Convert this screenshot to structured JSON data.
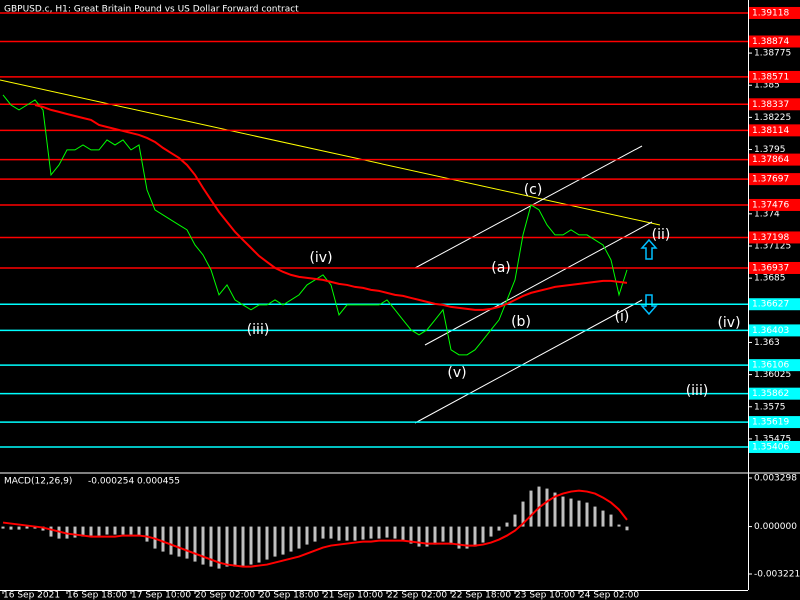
{
  "chart_data": [
    {
      "type": "line",
      "title": "GBPUSD.c, H1: Great Britain Pound vs US Dollar Forward contract",
      "categories": [
        "16 Sep 2021",
        null,
        null,
        null,
        null,
        null,
        null,
        null,
        "16 Sep 18:00",
        null,
        null,
        null,
        null,
        null,
        null,
        null,
        "17 Sep 10:00",
        null,
        null,
        null,
        null,
        null,
        null,
        null,
        "20 Sep 02:00",
        null,
        null,
        null,
        null,
        null,
        null,
        null,
        "20 Sep 18:00",
        null,
        null,
        null,
        null,
        null,
        null,
        null,
        "21 Sep 10:00",
        null,
        null,
        null,
        null,
        null,
        null,
        null,
        "22 Sep 02:00",
        null,
        null,
        null,
        null,
        null,
        null,
        null,
        "22 Sep 18:00",
        null,
        null,
        null,
        null,
        null,
        null,
        null,
        "23 Sep 10:00",
        null,
        null,
        null,
        null,
        null,
        null,
        null,
        "24 Sep 02:00",
        null,
        null,
        null,
        null,
        null,
        null
      ],
      "series": [
        {
          "color": "#00ff00",
          "values": [
            1.38417,
            1.38331,
            1.38289,
            1.38331,
            1.38374,
            1.38289,
            1.37733,
            1.37818,
            1.37947,
            1.37947,
            1.37989,
            1.37947,
            1.37947,
            1.38032,
            1.37989,
            1.38032,
            1.37947,
            1.37989,
            1.37605,
            1.37434,
            1.37391,
            1.37348,
            1.37305,
            1.37263,
            1.37134,
            1.37049,
            1.36921,
            1.36707,
            1.36792,
            1.36664,
            1.36621,
            1.36579,
            1.36621,
            1.36621,
            1.36664,
            1.36621,
            1.36664,
            1.36707,
            1.36792,
            1.36835,
            1.36878,
            1.36792,
            1.36536,
            1.36621,
            1.36621,
            1.36621,
            1.36621,
            1.36621,
            1.36664,
            1.36579,
            1.36493,
            1.36408,
            1.36365,
            1.36408,
            1.36493,
            1.36579,
            1.36237,
            1.36194,
            1.36194,
            1.36237,
            1.36322,
            1.36408,
            1.36493,
            1.36664,
            1.36835,
            1.3722,
            1.37476,
            1.37434,
            1.37305,
            1.3722,
            1.3722,
            1.37263,
            1.3722,
            1.3722,
            1.37177,
            1.37134,
            1.37006,
            1.36707,
            1.36921
          ]
        },
        {
          "color": "#ff0000",
          "values": [
            null,
            null,
            null,
            null,
            1.38331,
            1.38314,
            1.38289,
            1.38272,
            1.38254,
            1.38237,
            1.3822,
            1.38203,
            1.3816,
            1.38143,
            1.38126,
            1.38109,
            1.38092,
            1.38075,
            1.38049,
            1.38015,
            1.37964,
            1.37921,
            1.37878,
            1.37818,
            1.37733,
            1.37622,
            1.37519,
            1.37417,
            1.37331,
            1.37246,
            1.37177,
            1.37109,
            1.3704,
            1.36989,
            1.36938,
            1.36904,
            1.36878,
            1.36861,
            1.36852,
            1.36844,
            1.36835,
            1.36818,
            1.36801,
            1.36792,
            1.36775,
            1.36767,
            1.3675,
            1.36741,
            1.36724,
            1.36707,
            1.36698,
            1.36681,
            1.36664,
            1.36647,
            1.3663,
            1.36621,
            1.36604,
            1.36596,
            1.36587,
            1.36579,
            1.36579,
            1.36587,
            1.36604,
            1.3663,
            1.36664,
            1.36698,
            1.36724,
            1.36741,
            1.36758,
            1.36775,
            1.36784,
            1.36792,
            1.36801,
            1.3681,
            1.36818,
            1.36827,
            1.36827,
            1.36818,
            1.3681
          ]
        }
      ],
      "ylim": [
        1.35192,
        1.39229
      ],
      "yticks": [
        1.38775,
        1.385,
        1.38225,
        1.3795,
        1.374,
        1.37125,
        1.3685,
        1.363,
        1.36025,
        1.3575,
        1.35475
      ],
      "grid": false,
      "levels": [
        {
          "value": 1.39118,
          "color": "#ff0000"
        },
        {
          "value": 1.38874,
          "color": "#ff0000"
        },
        {
          "value": 1.38571,
          "color": "#ff0000"
        },
        {
          "value": 1.38337,
          "color": "#ff0000"
        },
        {
          "value": 1.38114,
          "color": "#ff0000"
        },
        {
          "value": 1.37864,
          "color": "#ff0000"
        },
        {
          "value": 1.37697,
          "color": "#ff0000"
        },
        {
          "value": 1.37476,
          "color": "#ff0000"
        },
        {
          "value": 1.37198,
          "color": "#ff0000"
        },
        {
          "value": 1.36937,
          "color": "#ff0000"
        },
        {
          "value": 1.36627,
          "color": "#00ffff"
        },
        {
          "value": 1.36403,
          "color": "#00ffff"
        },
        {
          "value": 1.36106,
          "color": "#00ffff"
        },
        {
          "value": 1.35862,
          "color": "#00ffff"
        },
        {
          "value": 1.35619,
          "color": "#00ffff"
        },
        {
          "value": 1.35406,
          "color": "#00ffff"
        }
      ],
      "annotations": [
        {
          "text": "(c)",
          "color": "#ffd700"
        },
        {
          "text": "(a)",
          "color": "#ffd700"
        },
        {
          "text": "(b)",
          "color": "#ffd700"
        },
        {
          "text": "(iv)",
          "color": "#ffffff"
        },
        {
          "text": "(iii)",
          "color": "#ffffff"
        },
        {
          "text": "(v)",
          "color": "#ffffff"
        },
        {
          "text": "(i)",
          "color": "#ffffff"
        },
        {
          "text": "(ii)",
          "color": "#ffffff"
        },
        {
          "text": "(iv)",
          "color": "#ffffff"
        },
        {
          "text": "(iii)",
          "color": "#ffffff"
        }
      ]
    },
    {
      "type": "bar",
      "title": "MACD(12,26,9)",
      "current_values": [
        -0.000254,
        0.000455
      ],
      "series": [
        {
          "color": "#c0c0c0",
          "values": [
            -0.000136,
            -0.000204,
            -0.000204,
            -0.000136,
            -0.000136,
            -0.000272,
            -0.000679,
            -0.000815,
            -0.000815,
            -0.000747,
            -0.000679,
            -0.000611,
            -0.000611,
            -0.000543,
            -0.000543,
            -0.000543,
            -0.000543,
            -0.000611,
            -0.001019,
            -0.001494,
            -0.001698,
            -0.001901,
            -0.002037,
            -0.002173,
            -0.002377,
            -0.00258,
            -0.002716,
            -0.002852,
            -0.002716,
            -0.002716,
            -0.002716,
            -0.00258,
            -0.002444,
            -0.002241,
            -0.002037,
            -0.001901,
            -0.001698,
            -0.001494,
            -0.001222,
            -0.001019,
            -0.000815,
            -0.000815,
            -0.000951,
            -0.000951,
            -0.000951,
            -0.000883,
            -0.000815,
            -0.000815,
            -0.000747,
            -0.000815,
            -0.000951,
            -0.001154,
            -0.001358,
            -0.001358,
            -0.001222,
            -0.001019,
            -0.001222,
            -0.001494,
            -0.001494,
            -0.001358,
            -0.001086,
            -0.000679,
            -0.000272,
            0.000272,
            0.000815,
            0.001698,
            0.002444,
            0.002716,
            0.00258,
            0.002309,
            0.002037,
            0.001901,
            0.001765,
            0.00163,
            0.001358,
            0.001086,
            0.000815,
            0.000136,
            -0.000254
          ]
        },
        {
          "color": "#ff0000",
          "style": "line",
          "values": [
            0.000272,
            0.000204,
            0.000136,
            6.8e-05,
            0,
            -6.8e-05,
            -0.000204,
            -0.00034,
            -0.000475,
            -0.000543,
            -0.000611,
            -0.000679,
            -0.000679,
            -0.000679,
            -0.000679,
            -0.000611,
            -0.000611,
            -0.000611,
            -0.000679,
            -0.000815,
            -0.001019,
            -0.001222,
            -0.001426,
            -0.00163,
            -0.001833,
            -0.002037,
            -0.002241,
            -0.002444,
            -0.00258,
            -0.002648,
            -0.002716,
            -0.002716,
            -0.002648,
            -0.00258,
            -0.002444,
            -0.002309,
            -0.002173,
            -0.002037,
            -0.001833,
            -0.00163,
            -0.001426,
            -0.00129,
            -0.001222,
            -0.001154,
            -0.001086,
            -0.001019,
            -0.001019,
            -0.000951,
            -0.000951,
            -0.000951,
            -0.000951,
            -0.001019,
            -0.001086,
            -0.001154,
            -0.001154,
            -0.001154,
            -0.001154,
            -0.001222,
            -0.00129,
            -0.00129,
            -0.001222,
            -0.001086,
            -0.000883,
            -0.000611,
            -0.000272,
            0.000204,
            0.000747,
            0.00129,
            0.001698,
            0.002037,
            0.002241,
            0.002377,
            0.002444,
            0.002377,
            0.002241,
            0.001969,
            0.00163,
            0.001154,
            0.000455
          ]
        }
      ],
      "ylim": [
        -0.004307,
        0.00357
      ],
      "yticks": [
        0.003298,
        {
          "value": 0,
          "label": "0.000000"
        },
        -0.003221
      ]
    }
  ]
}
